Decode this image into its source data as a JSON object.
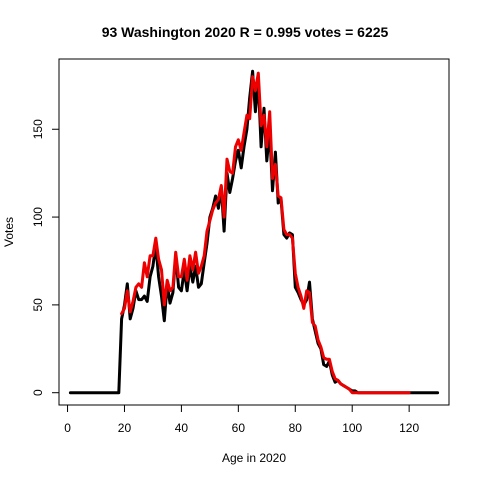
{
  "chart_data": {
    "type": "line",
    "title": "93 Washington 2020 R = 0.995 votes = 6225",
    "xlabel": "Age in 2020",
    "ylabel": "Votes",
    "xlim": [
      -3,
      134
    ],
    "ylim": [
      -7,
      190
    ],
    "xticks": [
      0,
      20,
      40,
      60,
      80,
      100,
      120
    ],
    "yticks": [
      0,
      50,
      100,
      150
    ],
    "grid": false,
    "legend": "none",
    "series": [
      {
        "color": "#000000",
        "x": [
          1,
          2,
          3,
          4,
          5,
          6,
          7,
          8,
          9,
          10,
          11,
          12,
          13,
          14,
          15,
          16,
          17,
          18,
          19,
          20,
          21,
          22,
          23,
          24,
          25,
          26,
          27,
          28,
          29,
          30,
          31,
          32,
          33,
          34,
          35,
          36,
          37,
          38,
          39,
          40,
          41,
          42,
          43,
          44,
          45,
          46,
          47,
          48,
          49,
          50,
          51,
          52,
          53,
          54,
          55,
          56,
          57,
          58,
          59,
          60,
          61,
          62,
          63,
          64,
          65,
          66,
          67,
          68,
          69,
          70,
          71,
          72,
          73,
          74,
          75,
          76,
          77,
          78,
          79,
          80,
          81,
          82,
          83,
          84,
          85,
          86,
          87,
          88,
          89,
          90,
          91,
          92,
          93,
          94,
          95,
          96,
          97,
          98,
          99,
          100,
          101,
          102,
          103,
          104,
          105,
          106,
          107,
          108,
          109,
          110,
          111,
          112,
          113,
          114,
          115,
          116,
          117,
          118,
          119,
          120,
          121,
          122,
          123,
          124,
          125,
          126,
          127,
          128,
          129,
          130
        ],
        "y": [
          0,
          0,
          0,
          0,
          0,
          0,
          0,
          0,
          0,
          0,
          0,
          0,
          0,
          0,
          0,
          0,
          0,
          0,
          42,
          50,
          62,
          42,
          48,
          58,
          53,
          53,
          55,
          52,
          66,
          72,
          84,
          66,
          55,
          41,
          62,
          51,
          57,
          78,
          60,
          58,
          70,
          58,
          72,
          63,
          72,
          60,
          62,
          74,
          85,
          100,
          105,
          112,
          105,
          117,
          92,
          125,
          114,
          122,
          132,
          138,
          128,
          140,
          150,
          168,
          183,
          160,
          178,
          140,
          162,
          132,
          150,
          115,
          137,
          108,
          110,
          90,
          88,
          91,
          90,
          60,
          57,
          53,
          50,
          53,
          63,
          42,
          35,
          28,
          25,
          16,
          15,
          18,
          10,
          6,
          7,
          5,
          4,
          3,
          2,
          1,
          1,
          0,
          0,
          0,
          0,
          0,
          0,
          0,
          0,
          0,
          0,
          0,
          0,
          0,
          0,
          0,
          0,
          0,
          0,
          0,
          0,
          0,
          0,
          0,
          0,
          0,
          0,
          0,
          0,
          0
        ]
      },
      {
        "color": "#ee0000",
        "x": [
          19,
          20,
          21,
          22,
          23,
          24,
          25,
          26,
          27,
          28,
          29,
          30,
          31,
          32,
          33,
          34,
          35,
          36,
          37,
          38,
          39,
          40,
          41,
          42,
          43,
          44,
          45,
          46,
          47,
          48,
          49,
          50,
          51,
          52,
          53,
          54,
          55,
          56,
          57,
          58,
          59,
          60,
          61,
          62,
          63,
          64,
          65,
          66,
          67,
          68,
          69,
          70,
          71,
          72,
          73,
          74,
          75,
          76,
          77,
          78,
          79,
          80,
          81,
          82,
          83,
          84,
          85,
          86,
          87,
          88,
          89,
          90,
          91,
          92,
          93,
          94,
          95,
          96,
          97,
          98,
          99,
          100,
          101,
          102,
          103,
          104,
          105,
          106,
          107,
          108,
          109,
          110,
          111,
          112,
          113,
          114,
          115,
          116,
          117,
          118,
          119,
          120
        ],
        "y": [
          45,
          48,
          58,
          46,
          52,
          60,
          62,
          60,
          74,
          66,
          78,
          78,
          88,
          76,
          70,
          50,
          64,
          58,
          60,
          80,
          66,
          66,
          76,
          64,
          78,
          70,
          80,
          68,
          72,
          78,
          92,
          98,
          104,
          108,
          110,
          118,
          100,
          133,
          126,
          125,
          140,
          144,
          138,
          148,
          158,
          156,
          180,
          172,
          182,
          152,
          158,
          140,
          160,
          122,
          130,
          112,
          111,
          93,
          90,
          90,
          88,
          68,
          60,
          55,
          48,
          58,
          57,
          40,
          38,
          30,
          26,
          20,
          19,
          19,
          12,
          8,
          7,
          5,
          4,
          3,
          2,
          0,
          0,
          0,
          0,
          0,
          0,
          0,
          0,
          0,
          0,
          0,
          0,
          0,
          0,
          0,
          0,
          0,
          0,
          0,
          0,
          0
        ]
      }
    ]
  }
}
